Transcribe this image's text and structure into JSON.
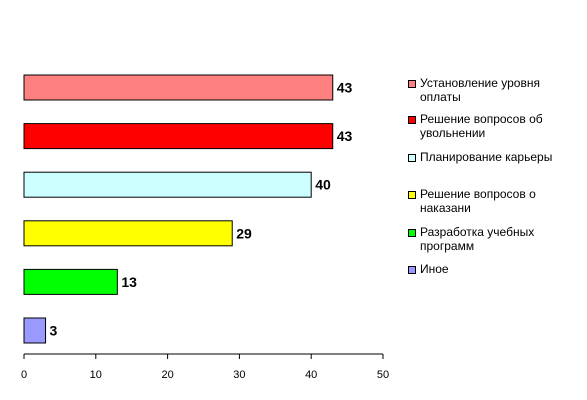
{
  "chart_data": {
    "type": "bar",
    "orientation": "horizontal",
    "categories": [
      "Установление уровня оплаты",
      "Решение вопросов об увольнении",
      "Планирование карьеры",
      "Решение вопросов о наказани",
      "Разработка учебных программ",
      "Иное"
    ],
    "values": [
      43,
      43,
      40,
      29,
      13,
      3
    ],
    "colors": [
      "#ff8080",
      "#ff0000",
      "#ccffff",
      "#ffff00",
      "#00ff00",
      "#9999ff"
    ],
    "xlim": [
      0,
      50
    ],
    "xticks": [
      0,
      10,
      20,
      30,
      40,
      50
    ],
    "title": "",
    "xlabel": "",
    "ylabel": "",
    "grid": false,
    "legend_position": "right"
  },
  "legend": {
    "items": [
      {
        "label": "Установление уровня\nоплаты",
        "color": "#ff8080"
      },
      {
        "label": "Решение вопросов об\nувольнении",
        "color": "#ff0000"
      },
      {
        "label": "Планирование карьеры",
        "color": "#ccffff"
      },
      {
        "label": "Решение вопросов о\nнаказани",
        "color": "#ffff00"
      },
      {
        "label": "Разработка учебных\nпрограмм",
        "color": "#00ff00"
      },
      {
        "label": "Иное",
        "color": "#9999ff"
      }
    ]
  }
}
